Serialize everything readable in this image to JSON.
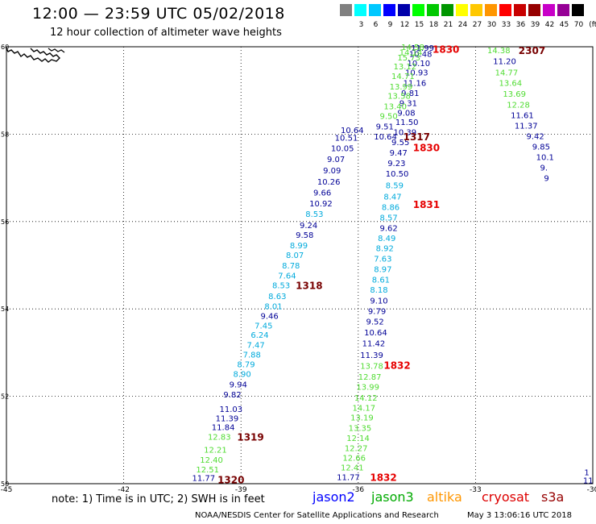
{
  "header": {
    "title": "12:00 — 23:59 UTC 05/02/2018",
    "subtitle": "12 hour collection of altimeter wave heights"
  },
  "color_scale": {
    "unit_label": "(ft)",
    "bins": [
      {
        "label": "",
        "color": "#808080"
      },
      {
        "label": "3",
        "color": "#00ffff"
      },
      {
        "label": "6",
        "color": "#00c8ff"
      },
      {
        "label": "9",
        "color": "#0000ff"
      },
      {
        "label": "12",
        "color": "#0000aa"
      },
      {
        "label": "15",
        "color": "#00ff00"
      },
      {
        "label": "18",
        "color": "#00c800"
      },
      {
        "label": "21",
        "color": "#009600"
      },
      {
        "label": "24",
        "color": "#ffff00"
      },
      {
        "label": "27",
        "color": "#ffc800"
      },
      {
        "label": "30",
        "color": "#ff9600"
      },
      {
        "label": "33",
        "color": "#ff0000"
      },
      {
        "label": "36",
        "color": "#c80000"
      },
      {
        "label": "39",
        "color": "#960000"
      },
      {
        "label": "42",
        "color": "#c800c8"
      },
      {
        "label": "45",
        "color": "#960096"
      },
      {
        "label": "70",
        "color": "#000000"
      }
    ]
  },
  "map": {
    "lon_range": [
      -45,
      -30
    ],
    "lat_range": [
      50,
      60
    ],
    "lon_ticks": [
      "-45",
      "-42",
      "-39",
      "-36",
      "-33",
      "-30"
    ],
    "lat_ticks": [
      "50",
      "52",
      "54",
      "56",
      "58",
      "60"
    ],
    "colors": {
      "dark_blue": "#000096",
      "light_blue": "#00aadc",
      "green": "#50dc32",
      "red": "#e60000",
      "dark_red": "#780000"
    },
    "tracks": [
      {
        "satellite": "jason2",
        "time_labels": [
          {
            "text": "1318",
            "lat": 54.55,
            "lon": -37.6,
            "color": "dark_red"
          },
          {
            "text": "1319",
            "lat": 51.08,
            "lon": -39.1,
            "color": "dark_red"
          },
          {
            "text": "1320",
            "lat": 50.1,
            "lon": -39.6,
            "color": "dark_red"
          }
        ],
        "points": [
          {
            "lat": 50.14,
            "lon": -40.25,
            "v": "11.77",
            "c": "dark_blue"
          },
          {
            "lat": 50.33,
            "lon": -40.15,
            "v": "12.51",
            "c": "green"
          },
          {
            "lat": 50.55,
            "lon": -40.05,
            "v": "12.40",
            "c": "green"
          },
          {
            "lat": 50.78,
            "lon": -39.95,
            "v": "12.21",
            "c": "green"
          },
          {
            "lat": 51.08,
            "lon": -39.85,
            "v": "12.83",
            "c": "green"
          },
          {
            "lat": 51.3,
            "lon": -39.75,
            "v": "11.84",
            "c": "dark_blue"
          },
          {
            "lat": 51.5,
            "lon": -39.65,
            "v": "11.39",
            "c": "dark_blue"
          },
          {
            "lat": 51.72,
            "lon": -39.55,
            "v": "11.03",
            "c": "dark_blue"
          },
          {
            "lat": 52.05,
            "lon": -39.45,
            "v": "9.82",
            "c": "dark_blue"
          },
          {
            "lat": 52.28,
            "lon": -39.3,
            "v": "9.94",
            "c": "dark_blue"
          },
          {
            "lat": 52.52,
            "lon": -39.2,
            "v": "8.90",
            "c": "light_blue"
          },
          {
            "lat": 52.74,
            "lon": -39.1,
            "v": "8.79",
            "c": "light_blue"
          },
          {
            "lat": 52.96,
            "lon": -38.95,
            "v": "7.88",
            "c": "light_blue"
          },
          {
            "lat": 53.18,
            "lon": -38.85,
            "v": "7.47",
            "c": "light_blue"
          },
          {
            "lat": 53.41,
            "lon": -38.75,
            "v": "6.24",
            "c": "light_blue"
          },
          {
            "lat": 53.63,
            "lon": -38.65,
            "v": "7.45",
            "c": "light_blue"
          },
          {
            "lat": 53.85,
            "lon": -38.5,
            "v": "9.46",
            "c": "dark_blue"
          },
          {
            "lat": 54.07,
            "lon": -38.4,
            "v": "8.01",
            "c": "light_blue"
          },
          {
            "lat": 54.3,
            "lon": -38.3,
            "v": "8.63",
            "c": "light_blue"
          },
          {
            "lat": 54.55,
            "lon": -38.2,
            "v": "8.53",
            "c": "light_blue"
          },
          {
            "lat": 54.77,
            "lon": -38.05,
            "v": "7.64",
            "c": "light_blue"
          },
          {
            "lat": 55.0,
            "lon": -37.95,
            "v": "8.78",
            "c": "light_blue"
          },
          {
            "lat": 55.24,
            "lon": -37.85,
            "v": "8.07",
            "c": "light_blue"
          },
          {
            "lat": 55.46,
            "lon": -37.75,
            "v": "8.99",
            "c": "light_blue"
          },
          {
            "lat": 55.7,
            "lon": -37.6,
            "v": "9.58",
            "c": "dark_blue"
          },
          {
            "lat": 55.92,
            "lon": -37.5,
            "v": "9.24",
            "c": "dark_blue"
          },
          {
            "lat": 56.18,
            "lon": -37.35,
            "v": "8.53",
            "c": "light_blue"
          },
          {
            "lat": 56.42,
            "lon": -37.25,
            "v": "10.92",
            "c": "dark_blue"
          },
          {
            "lat": 56.67,
            "lon": -37.15,
            "v": "9.66",
            "c": "dark_blue"
          },
          {
            "lat": 56.92,
            "lon": -37.05,
            "v": "10.26",
            "c": "dark_blue"
          },
          {
            "lat": 57.18,
            "lon": -36.9,
            "v": "9.09",
            "c": "dark_blue"
          },
          {
            "lat": 57.44,
            "lon": -36.8,
            "v": "9.07",
            "c": "dark_blue"
          },
          {
            "lat": 57.68,
            "lon": -36.7,
            "v": "10.05",
            "c": "dark_blue"
          },
          {
            "lat": 57.92,
            "lon": -36.6,
            "v": "10.51",
            "c": "dark_blue"
          },
          {
            "lat": 58.1,
            "lon": -36.45,
            "v": "10.64",
            "c": "dark_blue"
          }
        ]
      },
      {
        "satellite": "jason3",
        "time_labels": [
          {
            "text": "1832",
            "lat": 52.72,
            "lon": -35.35,
            "color": "red"
          },
          {
            "text": "1832",
            "lat": 50.16,
            "lon": -35.7,
            "color": "red"
          },
          {
            "text": "1831",
            "lat": 56.4,
            "lon": -34.6,
            "color": "red"
          },
          {
            "text": "1830",
            "lat": 57.7,
            "lon": -34.6,
            "color": "red"
          },
          {
            "text": "1830",
            "lat": 59.95,
            "lon": -34.1,
            "color": "red"
          }
        ],
        "points": [
          {
            "lat": 50.16,
            "lon": -36.55,
            "v": "11.77",
            "c": "dark_blue"
          },
          {
            "lat": 50.38,
            "lon": -36.45,
            "v": "12.41",
            "c": "green"
          },
          {
            "lat": 50.6,
            "lon": -36.4,
            "v": "12.66",
            "c": "green"
          },
          {
            "lat": 50.82,
            "lon": -36.35,
            "v": "12.27",
            "c": "green"
          },
          {
            "lat": 51.05,
            "lon": -36.3,
            "v": "12.14",
            "c": "green"
          },
          {
            "lat": 51.28,
            "lon": -36.25,
            "v": "13.35",
            "c": "green"
          },
          {
            "lat": 51.52,
            "lon": -36.2,
            "v": "13.19",
            "c": "green"
          },
          {
            "lat": 51.74,
            "lon": -36.15,
            "v": "14.17",
            "c": "green"
          },
          {
            "lat": 51.97,
            "lon": -36.1,
            "v": "14.12",
            "c": "green"
          },
          {
            "lat": 52.22,
            "lon": -36.05,
            "v": "13.99",
            "c": "green"
          },
          {
            "lat": 52.45,
            "lon": -36.0,
            "v": "12.87",
            "c": "green"
          },
          {
            "lat": 52.7,
            "lon": -35.95,
            "v": "13.78",
            "c": "green"
          },
          {
            "lat": 52.95,
            "lon": -35.95,
            "v": "11.39",
            "c": "dark_blue"
          },
          {
            "lat": 53.22,
            "lon": -35.9,
            "v": "11.42",
            "c": "dark_blue"
          },
          {
            "lat": 53.47,
            "lon": -35.85,
            "v": "10.64",
            "c": "dark_blue"
          },
          {
            "lat": 53.72,
            "lon": -35.8,
            "v": "9.52",
            "c": "dark_blue"
          },
          {
            "lat": 53.96,
            "lon": -35.75,
            "v": "9.79",
            "c": "dark_blue"
          },
          {
            "lat": 54.2,
            "lon": -35.7,
            "v": "9.10",
            "c": "dark_blue"
          },
          {
            "lat": 54.45,
            "lon": -35.7,
            "v": "8.18",
            "c": "light_blue"
          },
          {
            "lat": 54.68,
            "lon": -35.65,
            "v": "8.61",
            "c": "light_blue"
          },
          {
            "lat": 54.92,
            "lon": -35.6,
            "v": "8.97",
            "c": "light_blue"
          },
          {
            "lat": 55.16,
            "lon": -35.6,
            "v": "7.63",
            "c": "light_blue"
          },
          {
            "lat": 55.4,
            "lon": -35.55,
            "v": "8.92",
            "c": "light_blue"
          },
          {
            "lat": 55.63,
            "lon": -35.5,
            "v": "8.49",
            "c": "light_blue"
          },
          {
            "lat": 55.86,
            "lon": -35.45,
            "v": "9.62",
            "c": "dark_blue"
          },
          {
            "lat": 56.1,
            "lon": -35.45,
            "v": "8.57",
            "c": "light_blue"
          },
          {
            "lat": 56.34,
            "lon": -35.4,
            "v": "8.86",
            "c": "light_blue"
          },
          {
            "lat": 56.58,
            "lon": -35.35,
            "v": "8.47",
            "c": "light_blue"
          },
          {
            "lat": 56.84,
            "lon": -35.3,
            "v": "8.59",
            "c": "light_blue"
          },
          {
            "lat": 57.1,
            "lon": -35.3,
            "v": "10.50",
            "c": "dark_blue"
          },
          {
            "lat": 57.34,
            "lon": -35.25,
            "v": "9.23",
            "c": "dark_blue"
          },
          {
            "lat": 57.58,
            "lon": -35.2,
            "v": "9.47",
            "c": "dark_blue"
          },
          {
            "lat": 57.82,
            "lon": -35.15,
            "v": "9.55",
            "c": "dark_blue"
          },
          {
            "lat": 58.05,
            "lon": -35.1,
            "v": "10.39",
            "c": "dark_blue"
          },
          {
            "lat": 58.28,
            "lon": -35.05,
            "v": "11.50",
            "c": "dark_blue"
          },
          {
            "lat": 58.5,
            "lon": -35.0,
            "v": "9.08",
            "c": "dark_blue"
          },
          {
            "lat": 58.72,
            "lon": -34.95,
            "v": "9.31",
            "c": "dark_blue"
          },
          {
            "lat": 58.95,
            "lon": -34.9,
            "v": "9.81",
            "c": "dark_blue"
          },
          {
            "lat": 59.18,
            "lon": -34.85,
            "v": "11.16",
            "c": "dark_blue"
          },
          {
            "lat": 59.42,
            "lon": -34.8,
            "v": "10.93",
            "c": "dark_blue"
          },
          {
            "lat": 59.63,
            "lon": -34.75,
            "v": "10.10",
            "c": "dark_blue"
          },
          {
            "lat": 59.84,
            "lon": -34.7,
            "v": "10.48",
            "c": "dark_blue"
          },
          {
            "lat": 59.98,
            "lon": -34.65,
            "v": "11.99",
            "c": "dark_blue"
          }
        ]
      },
      {
        "satellite": "cryosat",
        "time_labels": [
          {
            "text": "1317",
            "lat": 57.95,
            "lon": -34.85,
            "color": "dark_red"
          }
        ],
        "points": [
          {
            "lat": 57.95,
            "lon": -35.6,
            "v": "10.64",
            "c": "dark_blue"
          },
          {
            "lat": 58.18,
            "lon": -35.55,
            "v": "9.51",
            "c": "dark_blue"
          },
          {
            "lat": 58.42,
            "lon": -35.45,
            "v": "9.50",
            "c": "green"
          },
          {
            "lat": 58.64,
            "lon": -35.35,
            "v": "13.40",
            "c": "green"
          },
          {
            "lat": 58.88,
            "lon": -35.25,
            "v": "13.58",
            "c": "green"
          },
          {
            "lat": 59.1,
            "lon": -35.2,
            "v": "13.99",
            "c": "green"
          },
          {
            "lat": 59.34,
            "lon": -35.15,
            "v": "14.71",
            "c": "green"
          },
          {
            "lat": 59.56,
            "lon": -35.1,
            "v": "13.12",
            "c": "green"
          },
          {
            "lat": 59.76,
            "lon": -35.0,
            "v": "15.73",
            "c": "green"
          },
          {
            "lat": 59.88,
            "lon": -34.95,
            "v": "14.14",
            "c": "green"
          },
          {
            "lat": 60.0,
            "lon": -34.9,
            "v": "14.58",
            "c": "green"
          }
        ]
      },
      {
        "satellite": "s3a",
        "time_labels": [
          {
            "text": "2307",
            "lat": 59.93,
            "lon": -31.9,
            "color": "dark_red"
          }
        ],
        "points": [
          {
            "lat": 59.93,
            "lon": -32.7,
            "v": "14.38",
            "c": "green"
          },
          {
            "lat": 59.68,
            "lon": -32.55,
            "v": "11.20",
            "c": "dark_blue"
          },
          {
            "lat": 59.42,
            "lon": -32.5,
            "v": "14.77",
            "c": "green"
          },
          {
            "lat": 59.18,
            "lon": -32.4,
            "v": "13.64",
            "c": "green"
          },
          {
            "lat": 58.93,
            "lon": -32.3,
            "v": "13.69",
            "c": "green"
          },
          {
            "lat": 58.68,
            "lon": -32.2,
            "v": "12.28",
            "c": "green"
          },
          {
            "lat": 58.44,
            "lon": -32.1,
            "v": "11.61",
            "c": "dark_blue"
          },
          {
            "lat": 58.2,
            "lon": -32.0,
            "v": "11.37",
            "c": "dark_blue"
          },
          {
            "lat": 57.96,
            "lon": -31.7,
            "v": "9.42",
            "c": "dark_blue"
          },
          {
            "lat": 57.72,
            "lon": -31.55,
            "v": "9.85",
            "c": "dark_blue"
          },
          {
            "lat": 57.48,
            "lon": -31.45,
            "v": "10.1",
            "c": "dark_blue"
          },
          {
            "lat": 57.24,
            "lon": -31.35,
            "v": "9.",
            "c": "dark_blue"
          },
          {
            "lat": 57.0,
            "lon": -31.25,
            "v": "9",
            "c": "dark_blue"
          }
        ]
      },
      {
        "satellite": "edge",
        "time_labels": [],
        "points": [
          {
            "lat": 50.27,
            "lon": -30.22,
            "v": "1",
            "c": "dark_blue"
          },
          {
            "lat": 50.08,
            "lon": -30.25,
            "v": "11",
            "c": "dark_blue"
          }
        ]
      }
    ]
  },
  "footer": {
    "note": "note:  1) Time is in UTC;  2) SWH is in feet",
    "legend": [
      {
        "name": "jason2",
        "color": "#0000ff"
      },
      {
        "name": "jason3",
        "color": "#00aa00"
      },
      {
        "name": "altika",
        "color": "#ff9600"
      },
      {
        "name": "cryosat",
        "color": "#dd0000"
      },
      {
        "name": "s3a",
        "color": "#960000"
      }
    ],
    "credit": "NOAA/NESDIS Center for Satellite Applications and Research",
    "timestamp": "May  3 13:06:16 UTC 2018"
  }
}
